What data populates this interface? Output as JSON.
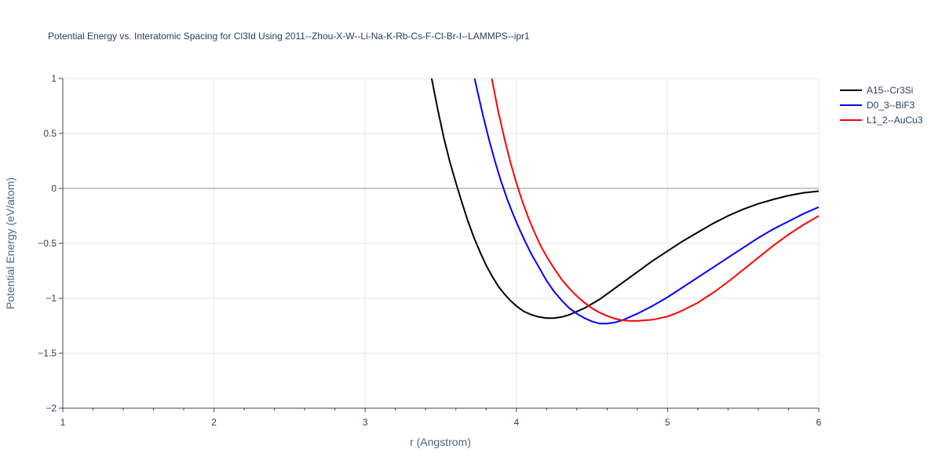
{
  "chart_data": {
    "type": "line",
    "title": "Potential Energy vs. Interatomic Spacing for Cl3Id Using 2011--Zhou-X-W--Li-Na-K-Rb-Cs-F-Cl-Br-I--LAMMPS--ipr1",
    "xlabel": "r (Angstrom)",
    "ylabel": "Potential Energy (eV/atom)",
    "xlim": [
      1,
      6
    ],
    "ylim": [
      -2,
      1
    ],
    "x_ticks": [
      1,
      2,
      3,
      4,
      5,
      6
    ],
    "x_tick_labels": [
      "1",
      "2",
      "3",
      "4",
      "5",
      "6"
    ],
    "y_ticks": [
      1,
      0.5,
      0,
      -0.5,
      -1,
      -1.5,
      -2
    ],
    "y_tick_labels": [
      "1",
      "0.5",
      "0",
      "−0.5",
      "−1",
      "−1.5",
      "−2"
    ],
    "grid": true,
    "legend_position": "top-right",
    "series": [
      {
        "name": "A15--Cr3Si",
        "color": "#000000",
        "x": [
          3.4,
          3.44,
          3.48,
          3.52,
          3.56,
          3.6,
          3.64,
          3.68,
          3.72,
          3.76,
          3.8,
          3.84,
          3.88,
          3.92,
          3.96,
          4.0,
          4.05,
          4.1,
          4.15,
          4.2,
          4.25,
          4.3,
          4.35,
          4.4,
          4.45,
          4.5,
          4.55,
          4.6,
          4.7,
          4.8,
          4.9,
          5.0,
          5.1,
          5.2,
          5.3,
          5.4,
          5.5,
          5.6,
          5.7,
          5.8,
          5.9,
          6.0
        ],
        "y": [
          1.35,
          1.0,
          0.72,
          0.46,
          0.24,
          0.05,
          -0.13,
          -0.3,
          -0.45,
          -0.58,
          -0.7,
          -0.8,
          -0.89,
          -0.96,
          -1.02,
          -1.07,
          -1.12,
          -1.15,
          -1.17,
          -1.18,
          -1.18,
          -1.17,
          -1.15,
          -1.12,
          -1.09,
          -1.05,
          -1.01,
          -0.96,
          -0.86,
          -0.76,
          -0.66,
          -0.57,
          -0.48,
          -0.4,
          -0.32,
          -0.25,
          -0.19,
          -0.14,
          -0.1,
          -0.065,
          -0.04,
          -0.025
        ]
      },
      {
        "name": "D0_3--BiF3",
        "color": "#0000ff",
        "x": [
          3.7,
          3.74,
          3.78,
          3.82,
          3.86,
          3.9,
          3.94,
          3.98,
          4.02,
          4.06,
          4.1,
          4.15,
          4.2,
          4.25,
          4.3,
          4.35,
          4.4,
          4.45,
          4.5,
          4.55,
          4.6,
          4.65,
          4.7,
          4.8,
          4.9,
          5.0,
          5.1,
          5.2,
          5.3,
          5.4,
          5.5,
          5.6,
          5.7,
          5.8,
          5.9,
          6.0
        ],
        "y": [
          1.15,
          0.9,
          0.66,
          0.44,
          0.24,
          0.06,
          -0.1,
          -0.24,
          -0.37,
          -0.49,
          -0.6,
          -0.72,
          -0.84,
          -0.94,
          -1.02,
          -1.09,
          -1.14,
          -1.18,
          -1.21,
          -1.23,
          -1.23,
          -1.22,
          -1.2,
          -1.14,
          -1.07,
          -0.99,
          -0.9,
          -0.81,
          -0.72,
          -0.63,
          -0.54,
          -0.45,
          -0.37,
          -0.3,
          -0.23,
          -0.17
        ]
      },
      {
        "name": "L1_2--AuCu3",
        "color": "#ff0000",
        "x": [
          3.8,
          3.84,
          3.88,
          3.92,
          3.96,
          4.0,
          4.04,
          4.08,
          4.12,
          4.16,
          4.2,
          4.25,
          4.3,
          4.35,
          4.4,
          4.45,
          4.5,
          4.55,
          4.6,
          4.65,
          4.7,
          4.75,
          4.8,
          4.85,
          4.9,
          4.95,
          5.0,
          5.05,
          5.1,
          5.2,
          5.3,
          5.4,
          5.5,
          5.6,
          5.7,
          5.8,
          5.9,
          6.0
        ],
        "y": [
          1.3,
          0.98,
          0.7,
          0.46,
          0.24,
          0.05,
          -0.12,
          -0.27,
          -0.4,
          -0.52,
          -0.62,
          -0.73,
          -0.83,
          -0.91,
          -0.98,
          -1.04,
          -1.09,
          -1.13,
          -1.16,
          -1.185,
          -1.2,
          -1.205,
          -1.205,
          -1.2,
          -1.195,
          -1.18,
          -1.165,
          -1.14,
          -1.11,
          -1.04,
          -0.95,
          -0.85,
          -0.74,
          -0.63,
          -0.52,
          -0.42,
          -0.33,
          -0.25
        ]
      }
    ]
  }
}
